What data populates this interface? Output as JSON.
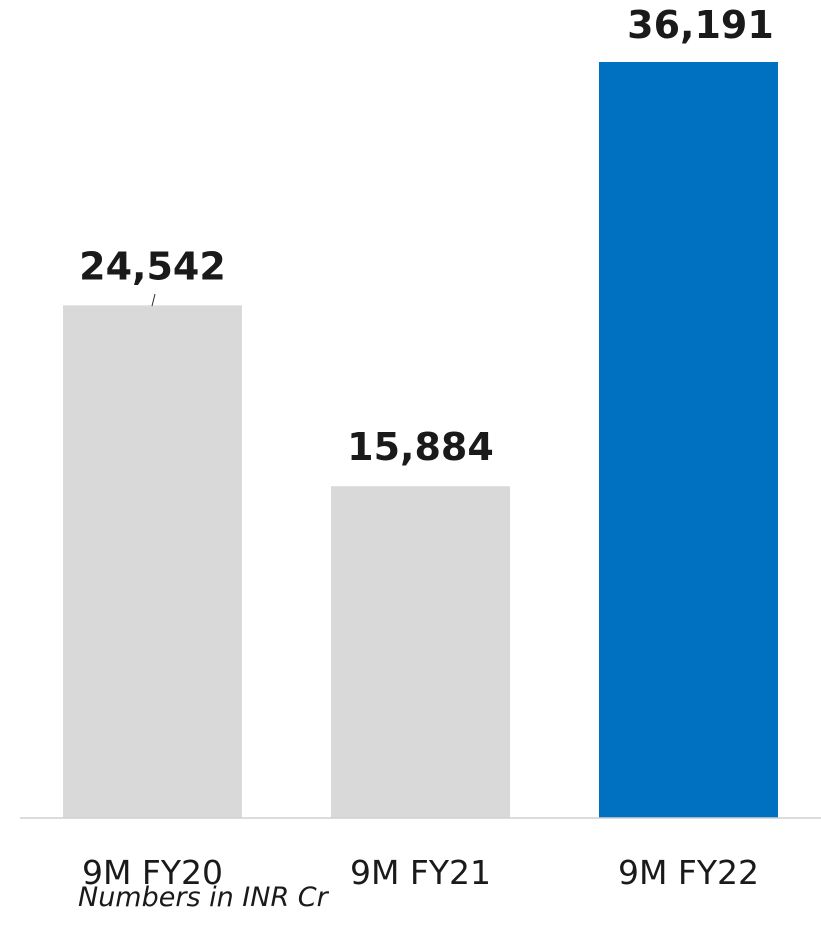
{
  "chart_data": {
    "type": "bar",
    "categories": [
      "9M FY20",
      "9M FY21",
      "9M FY22"
    ],
    "values": [
      24542,
      15884,
      36191
    ],
    "data_labels": [
      "24,542",
      "15,884",
      "36,191"
    ],
    "colors": [
      "#d9d9d9",
      "#d9d9d9",
      "#0070c0"
    ],
    "ylim": [
      0,
      36191
    ],
    "grid": false,
    "legend": "none"
  },
  "note": "Numbers in INR Cr"
}
